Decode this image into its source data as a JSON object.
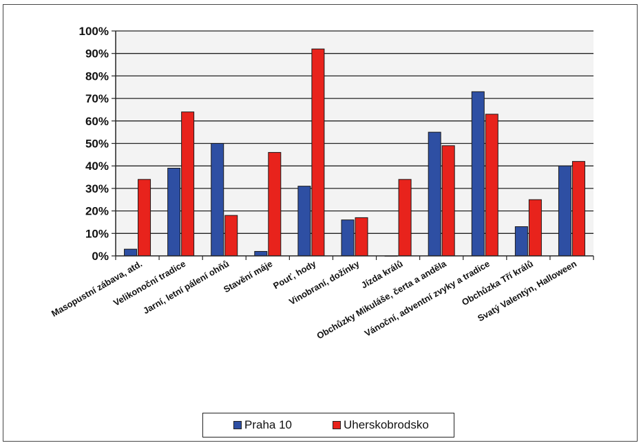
{
  "chart_data": {
    "type": "bar",
    "categories": [
      "Masopustní zábava, atd.",
      "Velikonoční tradice",
      "Jarní, letní pálení ohňů",
      "Stavění máje",
      "Pouť, hody",
      "Vinobraní, dožínky",
      "Jízda králů",
      "Obchůzky Mikuláše, čerta a anděla",
      "Vánoční, adventní zvyky a tradice",
      "Obchůzka Tří králů",
      "Svatý Valentýn, Halloween"
    ],
    "series": [
      {
        "name": "Praha 10",
        "color": "#2e4fa3",
        "values": [
          3,
          39,
          50,
          2,
          31,
          16,
          0,
          55,
          73,
          13,
          40
        ]
      },
      {
        "name": "Uherskobrodsko",
        "color": "#e8231c",
        "values": [
          34,
          64,
          18,
          46,
          92,
          17,
          34,
          49,
          63,
          25,
          42
        ]
      }
    ],
    "yticks": [
      "0%",
      "10%",
      "20%",
      "30%",
      "40%",
      "50%",
      "60%",
      "70%",
      "80%",
      "90%",
      "100%"
    ],
    "ylim": [
      0,
      100
    ],
    "grid": true,
    "legend_position": "bottom"
  }
}
